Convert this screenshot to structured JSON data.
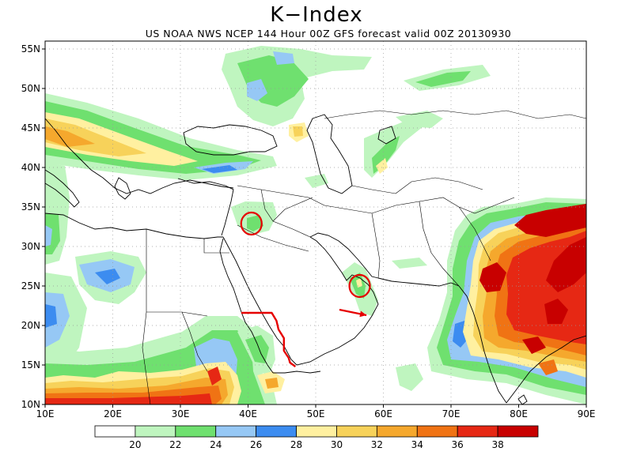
{
  "title": "K−Index",
  "subtitle": "US NOAA NWS NCEP 144 Hour 00Z GFS forecast valid 00Z 20130930",
  "axes": {
    "lon_ticks": [
      "10E",
      "20E",
      "30E",
      "40E",
      "50E",
      "60E",
      "70E",
      "80E",
      "90E"
    ],
    "lat_ticks": [
      "55N",
      "50N",
      "45N",
      "40N",
      "35N",
      "30N",
      "25N",
      "20N",
      "15N",
      "10N"
    ],
    "lon_range": [
      10,
      90
    ],
    "lat_range": [
      10,
      56
    ],
    "grid": "dotted"
  },
  "legend": {
    "labels": [
      "20",
      "22",
      "24",
      "26",
      "28",
      "30",
      "32",
      "34",
      "36",
      "38"
    ],
    "colors": [
      "#ffffff",
      "#bff5bf",
      "#6fe06f",
      "#96c8f5",
      "#3c8cf0",
      "#fff0a0",
      "#f7d25a",
      "#f5a82d",
      "#f07314",
      "#e62814",
      "#c80000"
    ]
  },
  "fields": {
    "colors": {
      "c22": "#bff5bf",
      "c24": "#6fe06f",
      "c26": "#96c8f5",
      "c28": "#3c8cf0",
      "c30": "#fff0a0",
      "c32": "#f7d25a",
      "c34": "#f5a82d",
      "c36": "#f07314",
      "c38": "#e62814",
      "c40": "#c80000"
    }
  },
  "annotations": {
    "color": "#e60000",
    "circles": [
      {
        "lon": 40.5,
        "lat": 32.9
      },
      {
        "lon": 56.5,
        "lat": 25.0
      }
    ],
    "arrow": {
      "from": [
        53.5,
        22.0
      ],
      "to": [
        57.5,
        21.3
      ]
    },
    "line": [
      [
        39.0,
        21.6
      ],
      [
        43.5,
        21.6
      ],
      [
        44.2,
        20.6
      ],
      [
        44.5,
        19.5
      ],
      [
        45.3,
        18.4
      ],
      [
        45.3,
        16.8
      ],
      [
        46.0,
        15.9
      ],
      [
        46.2,
        15.3
      ],
      [
        47.0,
        14.8
      ]
    ]
  }
}
